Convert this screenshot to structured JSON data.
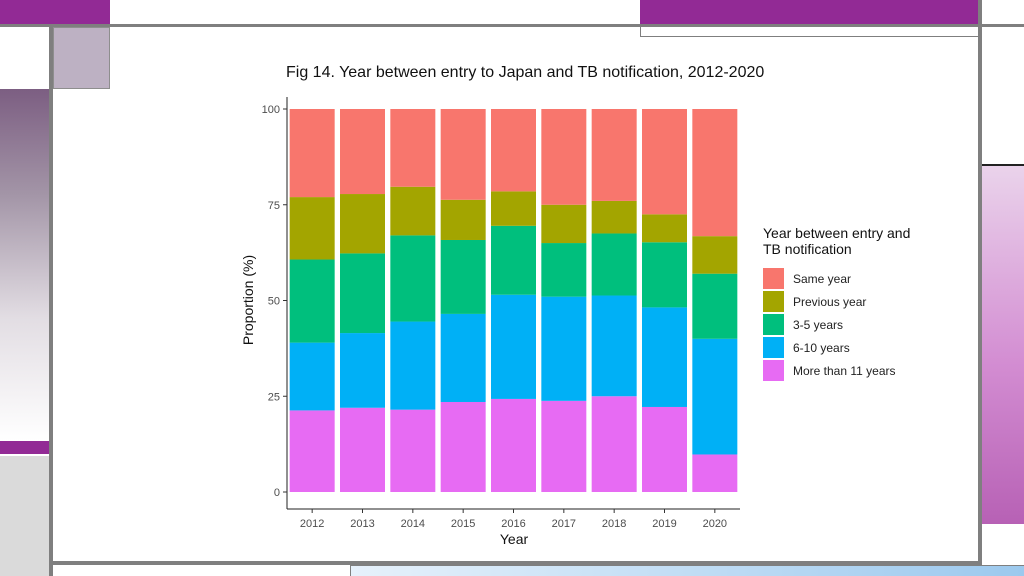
{
  "chart_data": {
    "type": "bar",
    "stacked": true,
    "title": "Fig 14. Year between entry to Japan and TB notification, 2012-2020",
    "xlabel": "Year",
    "ylabel": "Proportion (%)",
    "ylim": [
      0,
      100
    ],
    "yticks": [
      0,
      25,
      50,
      75,
      100
    ],
    "grid": false,
    "legend_position": "right",
    "legend_title": "Year between entry and\n TB notification",
    "categories": [
      "2012",
      "2013",
      "2014",
      "2015",
      "2016",
      "2017",
      "2018",
      "2019",
      "2020"
    ],
    "series": [
      {
        "name": "More than 11 years",
        "color": "#E76BF3",
        "values": [
          21.3,
          22.0,
          21.5,
          23.5,
          24.3,
          23.8,
          25.0,
          22.2,
          9.8
        ]
      },
      {
        "name": "6-10 years",
        "color": "#00B0F6",
        "values": [
          17.7,
          19.5,
          23.0,
          23.0,
          27.2,
          27.2,
          26.3,
          26.0,
          30.2
        ]
      },
      {
        "name": "3-5 years",
        "color": "#00BF7D",
        "values": [
          21.7,
          20.8,
          22.5,
          19.3,
          18.0,
          14.0,
          16.2,
          17.0,
          17.0
        ]
      },
      {
        "name": "Previous year",
        "color": "#A3A500",
        "values": [
          16.3,
          15.5,
          12.7,
          10.5,
          9.0,
          10.0,
          8.5,
          7.3,
          9.8
        ]
      },
      {
        "name": "Same year",
        "color": "#F8766D",
        "values": [
          23.0,
          22.2,
          20.3,
          23.7,
          21.5,
          25.0,
          24.0,
          27.5,
          33.2
        ]
      }
    ]
  },
  "legend_order": [
    "Same year",
    "Previous year",
    "3-5 years",
    "6-10 years",
    "More than 11 years"
  ],
  "theme_colors": {
    "accent_purple": "#922A95",
    "frame_gray": "#7F7F7F",
    "axis_text": "#4D4D4D"
  }
}
